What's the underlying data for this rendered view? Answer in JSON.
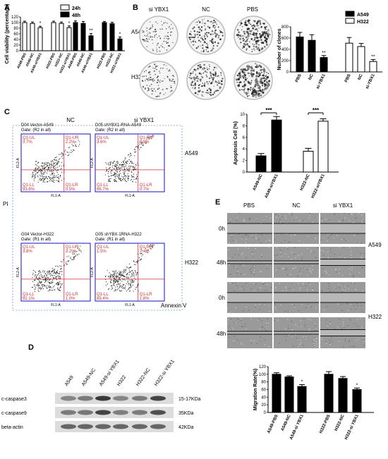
{
  "panels": {
    "A": "A",
    "B": "B",
    "C": "C",
    "D": "D",
    "E": "E"
  },
  "chart_data": [
    {
      "id": "A",
      "type": "bar",
      "ylabel": "Cell viability (percentage)",
      "ylim": [
        0,
        120
      ],
      "yticks": [
        "0",
        "20",
        "40",
        "60",
        "80",
        "100",
        "120"
      ],
      "legend": [
        {
          "name": "24h",
          "color": "#ffffff"
        },
        {
          "name": "48h",
          "color": "#000000"
        }
      ],
      "legend_placement": "top-right",
      "categories": [
        "A549-PBS",
        "A549-NC",
        "A549-siYBX1",
        "H322-PBS",
        "H322-NC",
        "H322-siYBX1",
        "A549-PBS",
        "A549-NC",
        "A549-siYBX1",
        "H322-PBS",
        "H322-NC",
        "H322-siYBX1"
      ],
      "values": [
        100,
        97,
        82,
        100,
        97,
        82,
        100,
        97,
        53,
        100,
        96,
        42
      ],
      "errors": [
        5,
        5,
        5,
        5,
        5,
        6,
        6,
        7,
        8,
        4,
        5,
        7
      ],
      "fills": [
        "#ffffff",
        "#ffffff",
        "#ffffff",
        "#ffffff",
        "#ffffff",
        "#ffffff",
        "#000000",
        "#000000",
        "#000000",
        "#000000",
        "#000000",
        "#000000"
      ],
      "sig": [
        "",
        "",
        "*",
        "",
        "",
        "*",
        "",
        "",
        "**",
        "",
        "",
        "*"
      ]
    },
    {
      "id": "B",
      "type": "bar",
      "ylabel": "Number of clones",
      "ylim": [
        0,
        800
      ],
      "yticks": [
        "0",
        "200",
        "400",
        "600",
        "800"
      ],
      "legend": [
        {
          "name": "A549",
          "color": "#000000"
        },
        {
          "name": "H322",
          "color": "#ffffff"
        }
      ],
      "legend_placement": "top-right",
      "categories": [
        "PBS",
        "NC",
        "si-YBX1",
        "PBS",
        "NC",
        "si-YBX1"
      ],
      "values": [
        620,
        560,
        255,
        510,
        450,
        185
      ],
      "errors": [
        80,
        100,
        35,
        100,
        55,
        35
      ],
      "fills": [
        "#000000",
        "#000000",
        "#000000",
        "#ffffff",
        "#ffffff",
        "#ffffff"
      ],
      "sig": [
        "",
        "",
        "**",
        "",
        "",
        "**"
      ]
    },
    {
      "id": "C",
      "type": "bar",
      "ylabel": "Apoptosis Cell (%)",
      "ylim": [
        0,
        10
      ],
      "yticks": [
        "0",
        "2",
        "4",
        "6",
        "8",
        "10"
      ],
      "categories": [
        "A549-NC",
        "A549-siYBX1",
        "H322-NC",
        "H322-siYBX1"
      ],
      "values": [
        2.8,
        9.0,
        3.6,
        8.8
      ],
      "errors": [
        0.4,
        0.6,
        0.5,
        0.4
      ],
      "fills": [
        "#000000",
        "#000000",
        "#ffffff",
        "#ffffff"
      ],
      "brackets": [
        {
          "from": 0,
          "to": 1,
          "label": "***"
        },
        {
          "from": 2,
          "to": 3,
          "label": "***"
        }
      ]
    },
    {
      "id": "E",
      "type": "bar",
      "ylabel": "Migration Rate(%)",
      "ylim": [
        0,
        120
      ],
      "yticks": [
        "0",
        "20",
        "40",
        "60",
        "80",
        "100",
        "120"
      ],
      "categories": [
        "A549-PBS",
        "A549-NC",
        "A549-si YBX1",
        "H322-PBS",
        "H322-NC",
        "H322-si YBX1"
      ],
      "values": [
        100,
        93,
        68,
        100,
        89,
        60
      ],
      "errors": [
        4,
        3,
        5,
        7,
        5,
        4
      ],
      "fills": [
        "#000000",
        "#000000",
        "#000000",
        "#000000",
        "#000000",
        "#000000"
      ],
      "sig": [
        "",
        "",
        "*",
        "",
        "",
        "*"
      ]
    }
  ],
  "panelB": {
    "cols": [
      "si YBX1",
      "NC",
      "PBS"
    ],
    "rows": [
      "A549",
      "H322"
    ]
  },
  "panelC": {
    "col_headers": [
      "NC",
      "si YBX1"
    ],
    "row_labels": [
      "A549",
      "H322"
    ],
    "ylabel_outer": "PI",
    "xlabel_outer": "Annexin V",
    "axis_y": "FL2-A",
    "axis_x": "FL1-A",
    "plots": [
      {
        "title": "D04 Vector-A549",
        "gate": "Gate: (R2 in all)",
        "ul": "Q1-UL",
        "ul_v": "3.7%",
        "ur": "Q1-UR",
        "ur_v": "2.2%",
        "ll": "Q1-LL",
        "ll_v": "93.6%",
        "lr": "Q1-LR",
        "lr_v": "0.5%"
      },
      {
        "title": "D05 shYBX1-RNA-A549",
        "gate": "Gate: (R2 in all)",
        "ul": "Q1-UL",
        "ul_v": "3.6%",
        "ur": "Q1-UR",
        "ur_v": "8.9%",
        "ll": "Q1-LL",
        "ll_v": "86.7%",
        "lr": "Q1-LR",
        "lr_v": "0.7%"
      },
      {
        "title": "G04 Vector-H322",
        "gate": "Gate: (R1 in all)",
        "ul": "Q1-UL",
        "ul_v": "3.8%",
        "ur": "Q1-UR",
        "ur_v": "3.2%",
        "ll": "Q1-LL",
        "ll_v": "92.1%",
        "lr": "Q1-LR",
        "lr_v": "1.0%"
      },
      {
        "title": "G05 shYBX-1RNA-H322",
        "gate": "Gate: (R1 in all)",
        "ul": "Q1-UL",
        "ul_v": "1.5%",
        "ur": "Q1-UR",
        "ur_v": "7.4%",
        "ll": "Q1-LL",
        "ll_v": "89.4%",
        "lr": "Q1-LR",
        "lr_v": "1.8%"
      }
    ]
  },
  "panelD": {
    "lanes": [
      "A549",
      "A549-NC",
      "A549-si YBX1",
      "H322",
      "H322-NC",
      "H322-si YBX1"
    ],
    "bands": [
      {
        "name": "c-caspase3",
        "size": "15-17KDa"
      },
      {
        "name": "c-caspase9",
        "size": "35KDa"
      },
      {
        "name": "beta-actin",
        "size": "42KDa"
      }
    ]
  },
  "panelE": {
    "cols": [
      "PBS",
      "NC",
      "si YBX1"
    ],
    "rows": [
      "0h",
      "48h",
      "0h",
      "48h"
    ],
    "cell_lines": [
      "A549",
      "H322"
    ]
  }
}
